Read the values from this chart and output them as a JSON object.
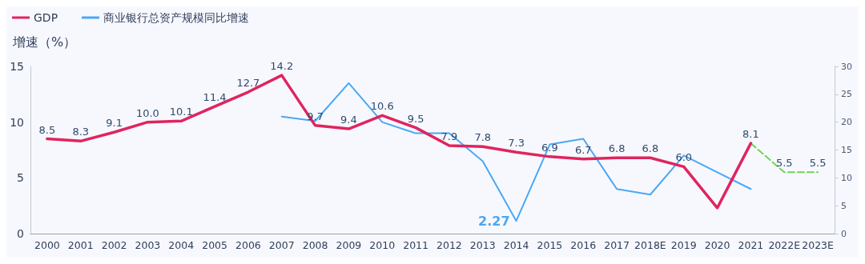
{
  "chart_data": {
    "type": "line",
    "ylabel": "增速（%）",
    "categories": [
      "2000",
      "2001",
      "2002",
      "2003",
      "2004",
      "2005",
      "2006",
      "2007",
      "2008",
      "2009",
      "2010",
      "2011",
      "2012",
      "2013",
      "2014",
      "2015",
      "2016",
      "2017",
      "2018E",
      "2019",
      "2020",
      "2021",
      "2022E",
      "2023E"
    ],
    "series": [
      {
        "name": "GDP",
        "color": "#e0245e",
        "values": [
          8.5,
          8.3,
          9.1,
          10.0,
          10.1,
          11.4,
          12.7,
          14.2,
          9.7,
          9.4,
          10.6,
          9.5,
          7.9,
          7.8,
          7.3,
          6.9,
          6.7,
          6.8,
          6.8,
          6.0,
          2.3,
          8.1,
          null,
          null
        ],
        "value_labels": [
          "8.5",
          "8.3",
          "9.1",
          "10.0",
          "10.1",
          "11.4",
          "12.7",
          "14.2",
          "9.7",
          "9.4",
          "10.6",
          "9.5",
          "7.9",
          "7.8",
          "7.3",
          "6.9",
          "6.7",
          "6.8",
          "6.8",
          "6.0",
          null,
          "8.1",
          null,
          null
        ]
      },
      {
        "name": "商业银行总资产规模同比增速",
        "color": "#4aa8f5",
        "axis": "y2",
        "values": [
          null,
          null,
          null,
          null,
          null,
          null,
          null,
          21,
          20.2,
          27,
          20,
          18,
          18,
          13,
          2.27,
          16,
          17,
          8,
          7,
          14,
          11,
          8,
          null,
          null
        ],
        "value_labels": [
          null,
          null,
          null,
          null,
          null,
          null,
          null,
          null,
          null,
          null,
          null,
          null,
          null,
          null,
          "2.27",
          null,
          null,
          null,
          null,
          null,
          null,
          null,
          null,
          null
        ]
      },
      {
        "color": "#6fd35a",
        "line_style": "dashed",
        "values": [
          null,
          null,
          null,
          null,
          null,
          null,
          null,
          null,
          null,
          null,
          null,
          null,
          null,
          null,
          null,
          null,
          null,
          null,
          null,
          null,
          null,
          8.1,
          5.5,
          5.5
        ],
        "value_labels": [
          null,
          null,
          null,
          null,
          null,
          null,
          null,
          null,
          null,
          null,
          null,
          null,
          null,
          null,
          null,
          null,
          null,
          null,
          null,
          null,
          null,
          null,
          "5.5",
          "5.5"
        ]
      }
    ],
    "ylim": [
      0,
      15
    ],
    "yticks": [
      0,
      5,
      10,
      15
    ],
    "y2lim": [
      0,
      30
    ],
    "y2ticks": [
      0,
      5,
      10,
      15,
      20,
      25,
      30
    ],
    "grid": false,
    "legend": "top left",
    "marker": "none"
  }
}
